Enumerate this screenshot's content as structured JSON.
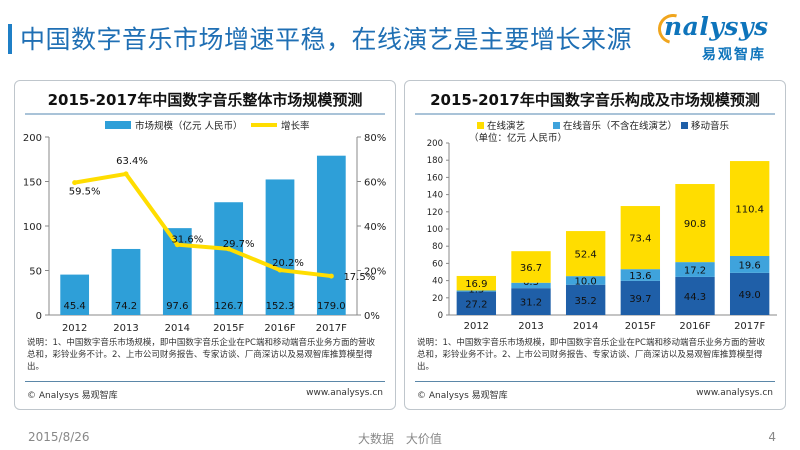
{
  "slide": {
    "title": "中国数字音乐市场增速平稳，在线演艺是主要增长来源",
    "logo_text": "nalysys",
    "logo_cn": "易观智库",
    "date": "2015/8/26",
    "slogan": "大数据 大价值",
    "page": "4"
  },
  "colors": {
    "blue": "#2e9fd8",
    "yellow": "#ffdd00",
    "navy": "#1f5fa8",
    "lightblue": "#3fa3dc",
    "accent": "#1f7fc6"
  },
  "chart_data": [
    {
      "type": "bar",
      "title": "2015-2017年中国数字音乐整体市场规模预测",
      "categories": [
        "2012",
        "2013",
        "2014",
        "2015F",
        "2016F",
        "2017F"
      ],
      "series": [
        {
          "name": "市场规模（亿元 人民币）",
          "type": "bar",
          "values": [
            45.4,
            74.2,
            97.6,
            126.7,
            152.3,
            179.0
          ],
          "labels": [
            "45.4",
            "74.2",
            "97.6",
            "126.7",
            "152.3",
            "179.0"
          ]
        },
        {
          "name": "增长率",
          "type": "line",
          "axis": "right",
          "values": [
            59.5,
            63.4,
            31.6,
            29.7,
            20.2,
            17.5
          ],
          "labels": [
            "59.5%",
            "63.4%",
            "31.6%",
            "29.7%",
            "20.2%",
            "17.5%"
          ]
        }
      ],
      "ylim": [
        0,
        200
      ],
      "y_ticks": [
        "0",
        "50",
        "100",
        "150",
        "200"
      ],
      "y2lim": [
        0,
        80
      ],
      "y2_ticks": [
        "0%",
        "20%",
        "40%",
        "60%",
        "80%"
      ],
      "legend": "top",
      "grid": false,
      "note": "说明：1、中国数字音乐市场规模，即中国数字音乐企业在PC端和移动端音乐业务方面的营收总和，彩铃业务不计。2、上市公司财务报告、专家访谈、厂商深访以及易观智库推算模型得出。",
      "source": "© Analysys 易观智库",
      "website": "www.analysys.cn"
    },
    {
      "type": "bar",
      "stacked": true,
      "title": "2015-2017年中国数字音乐构成及市场规模预测",
      "subtitle": "（单位：亿元 人民币）",
      "categories": [
        "2012",
        "2013",
        "2014",
        "2015F",
        "2016F",
        "2017F"
      ],
      "series": [
        {
          "name": "移动音乐",
          "values": [
            27.2,
            31.2,
            35.2,
            39.7,
            44.3,
            49.0
          ],
          "labels": [
            "27.2",
            "31.2",
            "35.2",
            "39.7",
            "44.3",
            "49.0"
          ]
        },
        {
          "name": "在线音乐（不含在线演艺）",
          "values": [
            1.3,
            6.3,
            10.0,
            13.6,
            17.2,
            19.6
          ],
          "labels": [
            "1.3",
            "6.3",
            "10.0",
            "13.6",
            "17.2",
            "19.6"
          ]
        },
        {
          "name": "在线演艺",
          "values": [
            16.9,
            36.7,
            52.4,
            73.4,
            90.8,
            110.4
          ],
          "labels": [
            "16.9",
            "36.7",
            "52.4",
            "73.4",
            "90.8",
            "110.4"
          ]
        }
      ],
      "legend_order": [
        "在线演艺",
        "在线音乐（不含在线演艺）",
        "移动音乐"
      ],
      "ylim": [
        0,
        200
      ],
      "y_ticks": [
        "0",
        "20",
        "40",
        "60",
        "80",
        "100",
        "120",
        "140",
        "160",
        "180",
        "200"
      ],
      "legend": "top-left",
      "grid": false,
      "note": "说明：1、中国数字音乐市场规模，即中国数字音乐企业在PC端和移动端音乐业务方面的营收总和，彩铃业务不计。2、上市公司财务报告、专家访谈、厂商深访以及易观智库推算模型得出。",
      "source": "© Analysys 易观智库",
      "website": "www.analysys.cn"
    }
  ]
}
